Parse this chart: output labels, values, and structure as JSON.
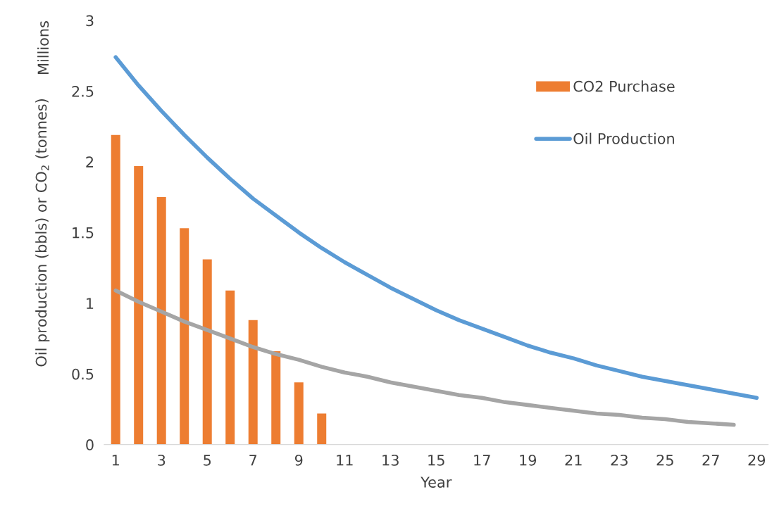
{
  "chart_data": {
    "type": "bar",
    "xlabel": "Year",
    "ylabel": "Oil production (bbls) or CO$_{2}$ (tonnes)",
    "annotations": [
      "Millions"
    ],
    "categories": [
      "1",
      null,
      "3",
      null,
      "5",
      null,
      "7",
      null,
      "9",
      null,
      "11",
      null,
      "13",
      null,
      "15",
      null,
      "17",
      null,
      "19",
      null,
      "21",
      null,
      "23",
      null,
      "25",
      null,
      "27",
      null,
      "29"
    ],
    "series": [
      {
        "name": "CO2 Purchase",
        "color": "#ed7d31",
        "values": [
          2.19,
          1.97,
          1.75,
          1.53,
          1.31,
          1.09,
          0.88,
          0.66,
          0.44,
          0.22,
          null,
          null,
          null,
          null,
          null,
          null,
          null,
          null,
          null,
          null,
          null,
          null,
          null,
          null,
          null,
          null,
          null,
          null,
          null
        ]
      },
      {
        "name": "Oil Production",
        "type": "line",
        "color": "#5b9bd5",
        "values": [
          2.74,
          2.54,
          2.36,
          2.19,
          2.03,
          1.88,
          1.74,
          1.62,
          1.5,
          1.39,
          1.29,
          1.2,
          1.11,
          1.03,
          0.95,
          0.88,
          0.82,
          0.76,
          0.7,
          0.65,
          0.61,
          0.56,
          0.52,
          0.48,
          0.45,
          0.42,
          0.39,
          0.36,
          0.33
        ]
      },
      {
        "type": "line",
        "color": "#a5a5a5",
        "values": [
          1.09,
          1.01,
          0.94,
          0.87,
          0.81,
          0.75,
          0.69,
          0.64,
          0.6,
          0.55,
          0.51,
          0.48,
          0.44,
          0.41,
          0.38,
          0.35,
          0.33,
          0.3,
          0.28,
          0.26,
          0.24,
          0.22,
          0.21,
          0.19,
          0.18,
          0.16,
          0.15,
          0.14,
          null
        ]
      }
    ],
    "ylim": [
      0,
      3
    ],
    "yticks": [
      0,
      0.5,
      1,
      1.5,
      2,
      2.5,
      3
    ],
    "grid": false,
    "legend": "right"
  }
}
